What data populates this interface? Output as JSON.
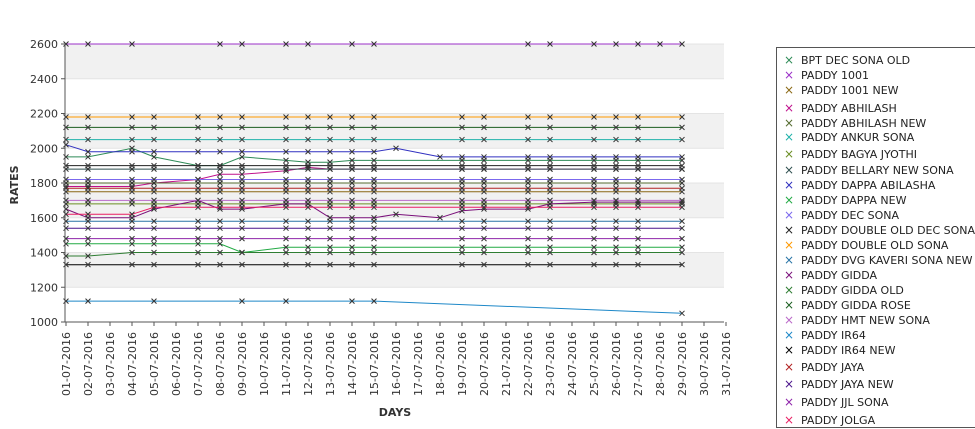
{
  "chart_data": {
    "type": "line",
    "title": "",
    "xlabel": "DAYS",
    "ylabel": "RATES",
    "ylim": [
      1000,
      2600
    ],
    "yticks": [
      1000,
      1200,
      1400,
      1600,
      1800,
      2000,
      2200,
      2400,
      2600
    ],
    "grid": "alternating horizontal bands",
    "legend_position": "right",
    "x": [
      "01-07-2016",
      "02-07-2016",
      "03-07-2016",
      "04-07-2016",
      "05-07-2016",
      "06-07-2016",
      "07-07-2016",
      "08-07-2016",
      "09-07-2016",
      "10-07-2016",
      "11-07-2016",
      "12-07-2016",
      "13-07-2016",
      "14-07-2016",
      "15-07-2016",
      "16-07-2016",
      "17-07-2016",
      "18-07-2016",
      "19-07-2016",
      "20-07-2016",
      "21-07-2016",
      "22-07-2016",
      "23-07-2016",
      "24-07-2016",
      "25-07-2016",
      "26-07-2016",
      "27-07-2016",
      "28-07-2016",
      "29-07-2016",
      "30-07-2016",
      "31-07-2016"
    ],
    "series": [
      {
        "name": "BPT DEC SONA OLD",
        "color": "#2e8b57",
        "values": [
          1950,
          1950,
          null,
          2000,
          1950,
          null,
          1900,
          1900,
          1950,
          null,
          1930,
          1920,
          1920,
          1930,
          1930,
          null,
          null,
          null,
          1930,
          1930,
          null,
          1930,
          1930,
          null,
          1930,
          1930,
          1930,
          null,
          1930,
          null,
          null
        ]
      },
      {
        "name": "PADDY 1001",
        "color": "#9b30c8",
        "values": [
          2600,
          2600,
          null,
          2600,
          null,
          null,
          null,
          2600,
          2600,
          null,
          2600,
          2600,
          null,
          2600,
          2600,
          null,
          null,
          null,
          null,
          null,
          null,
          2600,
          2600,
          null,
          2600,
          2600,
          2600,
          2600,
          2600,
          null,
          null
        ]
      },
      {
        "name": "PADDY 1001 NEW",
        "color": "#8b6914",
        "values": [
          1750,
          1750,
          null,
          1750,
          1750,
          null,
          1750,
          1750,
          1750,
          null,
          1750,
          1750,
          1750,
          1750,
          1750,
          null,
          null,
          null,
          1750,
          1750,
          null,
          1750,
          1750,
          null,
          1750,
          1750,
          1750,
          null,
          1750,
          null,
          null
        ]
      },
      {
        "name": "PADDY ABHILASH",
        "color": "#c0108c",
        "values": [
          1780,
          1780,
          null,
          1780,
          1800,
          null,
          1820,
          1850,
          1850,
          null,
          1870,
          1890,
          1880,
          1880,
          1880,
          null,
          null,
          null,
          1880,
          1880,
          null,
          1880,
          1880,
          null,
          1880,
          1880,
          1880,
          null,
          1880,
          null,
          null
        ]
      },
      {
        "name": "PADDY ABHILASH NEW",
        "color": "#556b2f",
        "values": [
          1800,
          1800,
          null,
          1800,
          1800,
          null,
          1800,
          1800,
          1800,
          null,
          1800,
          1800,
          1800,
          1800,
          1800,
          null,
          null,
          null,
          1800,
          1800,
          null,
          1800,
          1800,
          null,
          1800,
          1800,
          1800,
          null,
          1800,
          null,
          null
        ]
      },
      {
        "name": "PADDY ANKUR SONA",
        "color": "#20b2aa",
        "values": [
          2050,
          2050,
          null,
          2050,
          2050,
          null,
          2050,
          2050,
          2050,
          null,
          2050,
          2050,
          2050,
          2050,
          2050,
          null,
          null,
          null,
          2050,
          2050,
          null,
          2050,
          2050,
          null,
          2050,
          2050,
          2050,
          null,
          2050,
          null,
          null
        ]
      },
      {
        "name": "PADDY BAGYA JYOTHI",
        "color": "#6b8e23",
        "values": [
          1680,
          1680,
          null,
          1680,
          1680,
          null,
          1680,
          1680,
          1680,
          null,
          1680,
          1680,
          1680,
          1680,
          1680,
          null,
          null,
          null,
          1680,
          1680,
          null,
          1680,
          1680,
          null,
          1680,
          1680,
          1680,
          null,
          1680,
          null,
          null
        ]
      },
      {
        "name": "PADDY BELLARY NEW SONA",
        "color": "#2f4f4f",
        "values": [
          1880,
          1880,
          null,
          1880,
          1880,
          null,
          1880,
          1880,
          1880,
          null,
          1880,
          1880,
          1880,
          1880,
          1880,
          null,
          null,
          null,
          1880,
          1880,
          null,
          1880,
          1880,
          null,
          1880,
          1880,
          1880,
          null,
          1880,
          null,
          null
        ]
      },
      {
        "name": "PADDY DAPPA ABILASHA",
        "color": "#3030c0",
        "values": [
          2020,
          1980,
          null,
          1980,
          1980,
          null,
          1980,
          1980,
          1980,
          null,
          1980,
          1980,
          1980,
          1980,
          1980,
          2000,
          null,
          1950,
          1950,
          1950,
          null,
          1950,
          1950,
          null,
          1950,
          1950,
          1950,
          null,
          1950,
          null,
          null
        ]
      },
      {
        "name": "PADDY DAPPA NEW",
        "color": "#22aa44",
        "values": [
          1450,
          1450,
          null,
          1450,
          1450,
          null,
          1450,
          1450,
          1400,
          null,
          1430,
          1430,
          1430,
          1430,
          1430,
          null,
          null,
          null,
          1430,
          1430,
          null,
          1430,
          1430,
          null,
          1430,
          1430,
          1430,
          null,
          1430,
          null,
          null
        ]
      },
      {
        "name": "PADDY DEC SONA",
        "color": "#7b68ee",
        "values": [
          1820,
          1820,
          null,
          1820,
          1820,
          null,
          1820,
          1820,
          1820,
          null,
          1820,
          1820,
          1820,
          1820,
          1820,
          null,
          null,
          null,
          1820,
          1820,
          null,
          1820,
          1820,
          null,
          1820,
          1820,
          1820,
          null,
          1820,
          null,
          null
        ]
      },
      {
        "name": "PADDY DOUBLE OLD DEC SONA",
        "color": "#222222",
        "values": [
          1900,
          1900,
          null,
          1900,
          1900,
          null,
          1900,
          1900,
          1900,
          null,
          1900,
          1900,
          1900,
          1900,
          1900,
          null,
          null,
          null,
          1900,
          1900,
          null,
          1900,
          1900,
          null,
          1900,
          1900,
          1900,
          null,
          1900,
          null,
          null
        ]
      },
      {
        "name": "PADDY DOUBLE OLD SONA",
        "color": "#ff9900",
        "values": [
          2180,
          2180,
          null,
          2180,
          2180,
          null,
          2180,
          2180,
          2180,
          null,
          2180,
          2180,
          2180,
          2180,
          2180,
          null,
          null,
          null,
          2180,
          2180,
          null,
          2180,
          2180,
          null,
          2180,
          2180,
          2180,
          null,
          2180,
          null,
          null
        ]
      },
      {
        "name": "PADDY DVG KAVERI SONA NEW",
        "color": "#2874a6",
        "values": [
          1580,
          1580,
          null,
          1580,
          1580,
          null,
          1580,
          1580,
          1580,
          null,
          1580,
          1580,
          1580,
          1580,
          1580,
          null,
          null,
          null,
          1580,
          1580,
          null,
          1580,
          1580,
          null,
          1580,
          1580,
          1580,
          null,
          1580,
          null,
          null
        ]
      },
      {
        "name": "PADDY GIDDA",
        "color": "#7a0f7a",
        "values": [
          1650,
          1600,
          null,
          1600,
          1650,
          null,
          1700,
          1650,
          1650,
          null,
          1680,
          1680,
          1600,
          1600,
          1600,
          1620,
          null,
          1600,
          1640,
          1650,
          null,
          1650,
          1680,
          null,
          1690,
          1690,
          1690,
          null,
          1690,
          null,
          null
        ]
      },
      {
        "name": "PADDY GIDDA OLD",
        "color": "#2e7d32",
        "values": [
          1380,
          1380,
          null,
          1400,
          1400,
          null,
          1400,
          1400,
          1400,
          null,
          1400,
          1400,
          1400,
          1400,
          1400,
          null,
          null,
          null,
          1400,
          1400,
          null,
          1400,
          1400,
          null,
          1400,
          1400,
          1400,
          null,
          1400,
          null,
          null
        ]
      },
      {
        "name": "PADDY GIDDA ROSE",
        "color": "#1b5e20",
        "values": [
          2120,
          2120,
          null,
          2120,
          2120,
          null,
          2120,
          2120,
          2120,
          null,
          2120,
          2120,
          2120,
          2120,
          2120,
          null,
          null,
          null,
          2120,
          2120,
          null,
          2120,
          2120,
          null,
          2120,
          2120,
          2120,
          null,
          2120,
          null,
          null
        ]
      },
      {
        "name": "PADDY HMT NEW SONA",
        "color": "#ba68c8",
        "values": [
          1700,
          1700,
          null,
          1700,
          1700,
          null,
          1700,
          1700,
          1700,
          null,
          1700,
          1700,
          1700,
          1700,
          1700,
          null,
          null,
          null,
          1700,
          1700,
          null,
          1700,
          1700,
          null,
          1700,
          1700,
          1700,
          null,
          1700,
          null,
          null
        ]
      },
      {
        "name": "PADDY IR64",
        "color": "#1e88c8",
        "values": [
          1120,
          1120,
          null,
          null,
          1120,
          null,
          null,
          null,
          1120,
          null,
          1120,
          null,
          null,
          1120,
          1120,
          null,
          null,
          null,
          null,
          null,
          null,
          null,
          null,
          null,
          null,
          null,
          null,
          null,
          1050,
          null,
          null
        ]
      },
      {
        "name": "PADDY IR64 NEW",
        "color": "#000000",
        "values": [
          1330,
          1330,
          null,
          1330,
          1330,
          null,
          1330,
          1330,
          1330,
          null,
          1330,
          1330,
          1330,
          1330,
          1330,
          null,
          null,
          null,
          1330,
          1330,
          null,
          1330,
          1330,
          null,
          1330,
          1330,
          1330,
          null,
          1330,
          null,
          null
        ]
      },
      {
        "name": "PADDY JAYA",
        "color": "#b22222",
        "values": [
          1770,
          1770,
          null,
          1770,
          1770,
          null,
          1770,
          1770,
          1770,
          null,
          1770,
          1770,
          1770,
          1770,
          1770,
          null,
          null,
          null,
          1770,
          1770,
          null,
          1770,
          1770,
          null,
          1770,
          1770,
          1770,
          null,
          1770,
          null,
          null
        ]
      },
      {
        "name": "PADDY JAYA NEW",
        "color": "#4a148c",
        "values": [
          1540,
          1540,
          null,
          1540,
          1540,
          null,
          1540,
          1540,
          1540,
          null,
          1540,
          1540,
          1540,
          1540,
          1540,
          null,
          null,
          null,
          1540,
          1540,
          null,
          1540,
          1540,
          null,
          1540,
          1540,
          1540,
          null,
          1540,
          null,
          null
        ]
      },
      {
        "name": "PADDY JJL SONA",
        "color": "#8e24aa",
        "values": [
          1480,
          1480,
          null,
          1480,
          1480,
          null,
          1480,
          1480,
          1480,
          null,
          1480,
          1480,
          1480,
          1480,
          1480,
          null,
          null,
          null,
          1480,
          1480,
          null,
          1480,
          1480,
          null,
          1480,
          1480,
          1480,
          null,
          1480,
          null,
          null
        ]
      },
      {
        "name": "PADDY JOLGA",
        "color": "#e91e63",
        "values": [
          1620,
          1620,
          null,
          1620,
          1660,
          null,
          1660,
          1660,
          1660,
          null,
          1660,
          1660,
          1660,
          1660,
          1660,
          null,
          null,
          null,
          1660,
          1660,
          null,
          1660,
          1660,
          null,
          1660,
          1660,
          1660,
          null,
          1660,
          null,
          null
        ]
      }
    ]
  }
}
